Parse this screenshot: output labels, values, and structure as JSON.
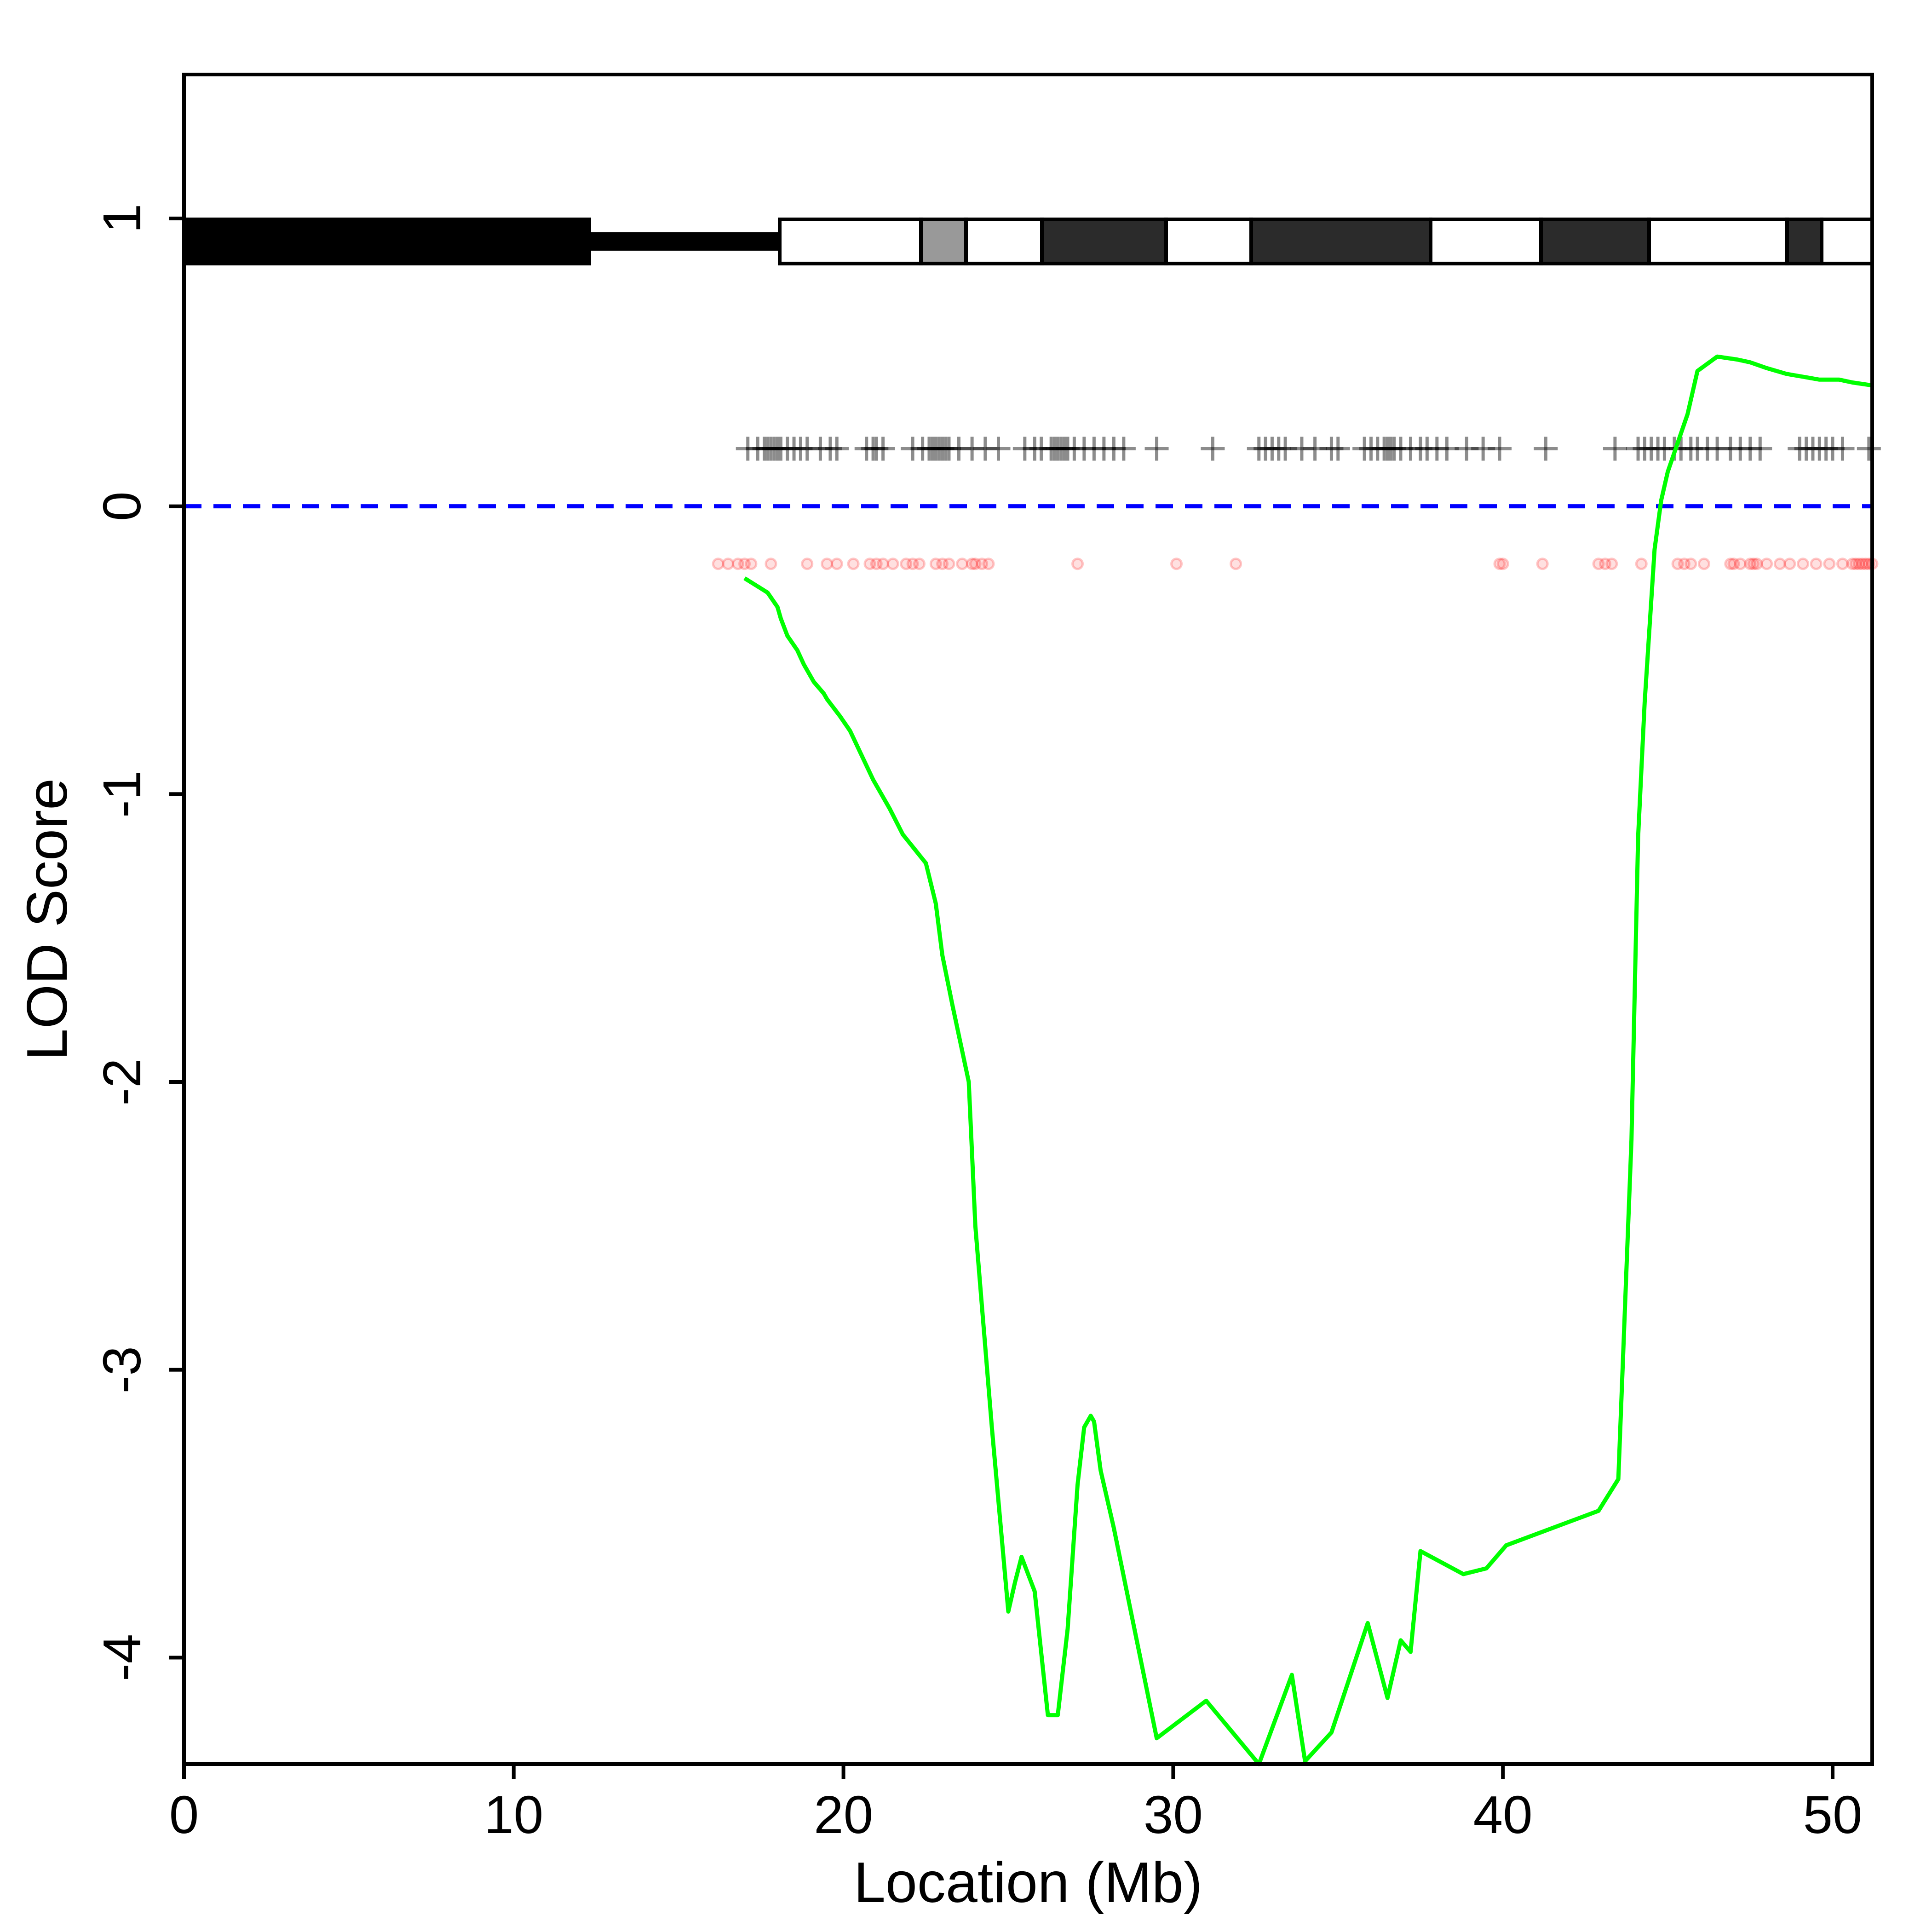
{
  "chart_data": {
    "type": "line",
    "title": "",
    "xlabel": "Location (Mb)",
    "ylabel": "LOD Score",
    "xlim": [
      0,
      51.2
    ],
    "ylim": [
      -4.37,
      1.5
    ],
    "x_ticks": [
      0,
      10,
      20,
      30,
      40,
      50
    ],
    "y_ticks": [
      -4,
      -3,
      -2,
      -1,
      0,
      1
    ],
    "threshold_line": {
      "y": 0,
      "color": "#0000ff",
      "style": "dashed"
    },
    "series": [
      {
        "color": "#00ff00",
        "x": [
          17.0,
          17.7,
          18.0,
          18.1,
          18.3,
          18.6,
          18.8,
          19.1,
          19.4,
          19.5,
          19.9,
          20.2,
          20.9,
          21.4,
          21.8,
          22.5,
          22.8,
          23.0,
          23.3,
          23.8,
          24.0,
          24.5,
          25.0,
          25.2,
          25.4,
          25.8,
          26.2,
          26.5,
          26.8,
          27.1,
          27.3,
          27.5,
          27.6,
          27.8,
          28.2,
          29.5,
          31.0,
          32.6,
          33.6,
          34.0,
          34.8,
          35.9,
          36.5,
          36.9,
          37.2,
          37.5,
          38.8,
          39.5,
          40.1,
          42.9,
          43.5,
          43.9,
          44.1,
          44.3,
          44.6,
          44.8,
          45.0,
          45.3,
          45.6,
          45.9,
          46.5,
          47.1,
          47.5,
          48.0,
          48.6,
          49.1,
          49.6,
          50.2,
          50.6,
          51.2
        ],
        "y": [
          -0.25,
          -0.3,
          -0.35,
          -0.39,
          -0.45,
          -0.5,
          -0.55,
          -0.61,
          -0.65,
          -0.67,
          -0.73,
          -0.78,
          -0.95,
          -1.05,
          -1.14,
          -1.24,
          -1.38,
          -1.56,
          -1.73,
          -2.0,
          -2.5,
          -3.2,
          -3.84,
          -3.74,
          -3.65,
          -3.77,
          -4.2,
          -4.2,
          -3.9,
          -3.4,
          -3.2,
          -3.16,
          -3.18,
          -3.35,
          -3.55,
          -4.28,
          -4.15,
          -4.37,
          -4.06,
          -4.36,
          -4.26,
          -3.88,
          -4.14,
          -3.94,
          -3.98,
          -3.63,
          -3.71,
          -3.69,
          -3.61,
          -3.49,
          -3.38,
          -2.2,
          -1.15,
          -0.68,
          -0.15,
          0.02,
          0.12,
          0.22,
          0.32,
          0.47,
          0.52,
          0.51,
          0.5,
          0.48,
          0.46,
          0.45,
          0.44,
          0.44,
          0.43,
          0.42
        ]
      }
    ],
    "markers": {
      "y": 0.2,
      "symbol": "+",
      "color": "#000000",
      "x": [
        17.1,
        17.4,
        17.6,
        17.7,
        17.8,
        17.9,
        18.0,
        18.1,
        18.3,
        18.5,
        18.7,
        18.9,
        19.3,
        19.6,
        19.8,
        20.7,
        20.9,
        21.0,
        21.2,
        22.1,
        22.4,
        22.6,
        22.7,
        22.8,
        22.9,
        23.0,
        23.1,
        23.2,
        23.5,
        23.9,
        24.3,
        24.7,
        25.5,
        25.8,
        26.0,
        26.3,
        26.4,
        26.5,
        26.6,
        26.7,
        26.8,
        27.0,
        27.3,
        27.6,
        27.9,
        28.2,
        28.5,
        29.5,
        31.2,
        32.6,
        32.8,
        33.0,
        33.2,
        33.4,
        33.9,
        34.3,
        34.8,
        35.0,
        35.8,
        36.0,
        36.2,
        36.4,
        36.5,
        36.6,
        36.7,
        36.9,
        37.2,
        37.5,
        37.7,
        38.0,
        38.3,
        38.9,
        39.4,
        39.9,
        41.3,
        43.4,
        44.1,
        44.3,
        44.5,
        44.7,
        44.9,
        45.2,
        45.4,
        45.7,
        45.9,
        46.2,
        46.5,
        46.9,
        47.2,
        47.5,
        47.8,
        49.0,
        49.2,
        49.4,
        49.6,
        49.8,
        50.0,
        50.3,
        51.1
      ]
    },
    "points": {
      "y": -0.2,
      "color": "#ff0000",
      "x": [
        16.2,
        16.5,
        16.8,
        17.0,
        17.2,
        17.8,
        18.9,
        19.5,
        19.8,
        20.3,
        20.8,
        21.0,
        21.2,
        21.5,
        21.9,
        22.1,
        22.3,
        22.8,
        23.0,
        23.2,
        23.6,
        23.9,
        24.0,
        24.2,
        24.4,
        27.1,
        30.1,
        31.9,
        39.9,
        40.0,
        41.2,
        42.9,
        43.1,
        43.3,
        44.2,
        45.3,
        45.5,
        45.7,
        46.1,
        46.9,
        47.0,
        47.2,
        47.5,
        47.6,
        47.7,
        48.0,
        48.4,
        48.7,
        49.1,
        49.5,
        49.9,
        50.3,
        50.6,
        50.7,
        50.8,
        50.9,
        51.0,
        51.1,
        51.2
      ]
    },
    "chromosome_ideogram": {
      "y": 0.92,
      "color_scheme": [
        "#000000",
        "#ffffff",
        "#999999",
        "#2b2b2b"
      ]
    }
  }
}
